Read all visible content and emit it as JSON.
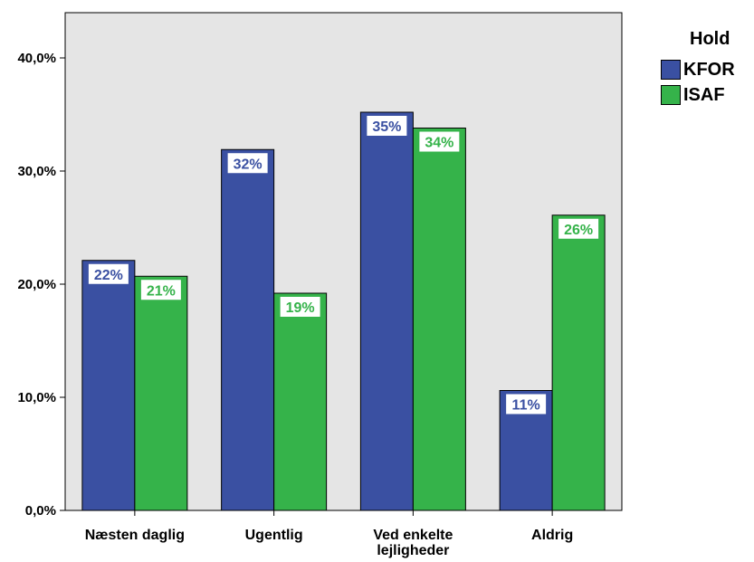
{
  "chart_data": {
    "type": "bar",
    "categories": [
      "Næsten daglig",
      "Ugentlig",
      "Ved enkelte lejligheder",
      "Aldrig"
    ],
    "category_lines": [
      [
        "Næsten daglig"
      ],
      [
        "Ugentlig"
      ],
      [
        "Ved enkelte",
        "lejligheder"
      ],
      [
        "Aldrig"
      ]
    ],
    "series": [
      {
        "name": "KFOR",
        "color": "#3a50a2",
        "values": [
          22.1,
          31.9,
          35.2,
          10.6
        ],
        "labels": [
          "22%",
          "32%",
          "35%",
          "11%"
        ]
      },
      {
        "name": "ISAF",
        "color": "#35b34a",
        "values": [
          20.7,
          19.2,
          33.8,
          26.1
        ],
        "labels": [
          "21%",
          "19%",
          "34%",
          "26%"
        ]
      }
    ],
    "ylim": [
      0,
      44
    ],
    "yticks": [
      0,
      10,
      20,
      30,
      40
    ],
    "ytick_labels": [
      "0,0%",
      "10,0%",
      "20,0%",
      "30,0%",
      "40,0%"
    ],
    "legend_title": "Hold",
    "legend_position": "right",
    "plot_background": "#e5e5e5",
    "grid": false
  }
}
